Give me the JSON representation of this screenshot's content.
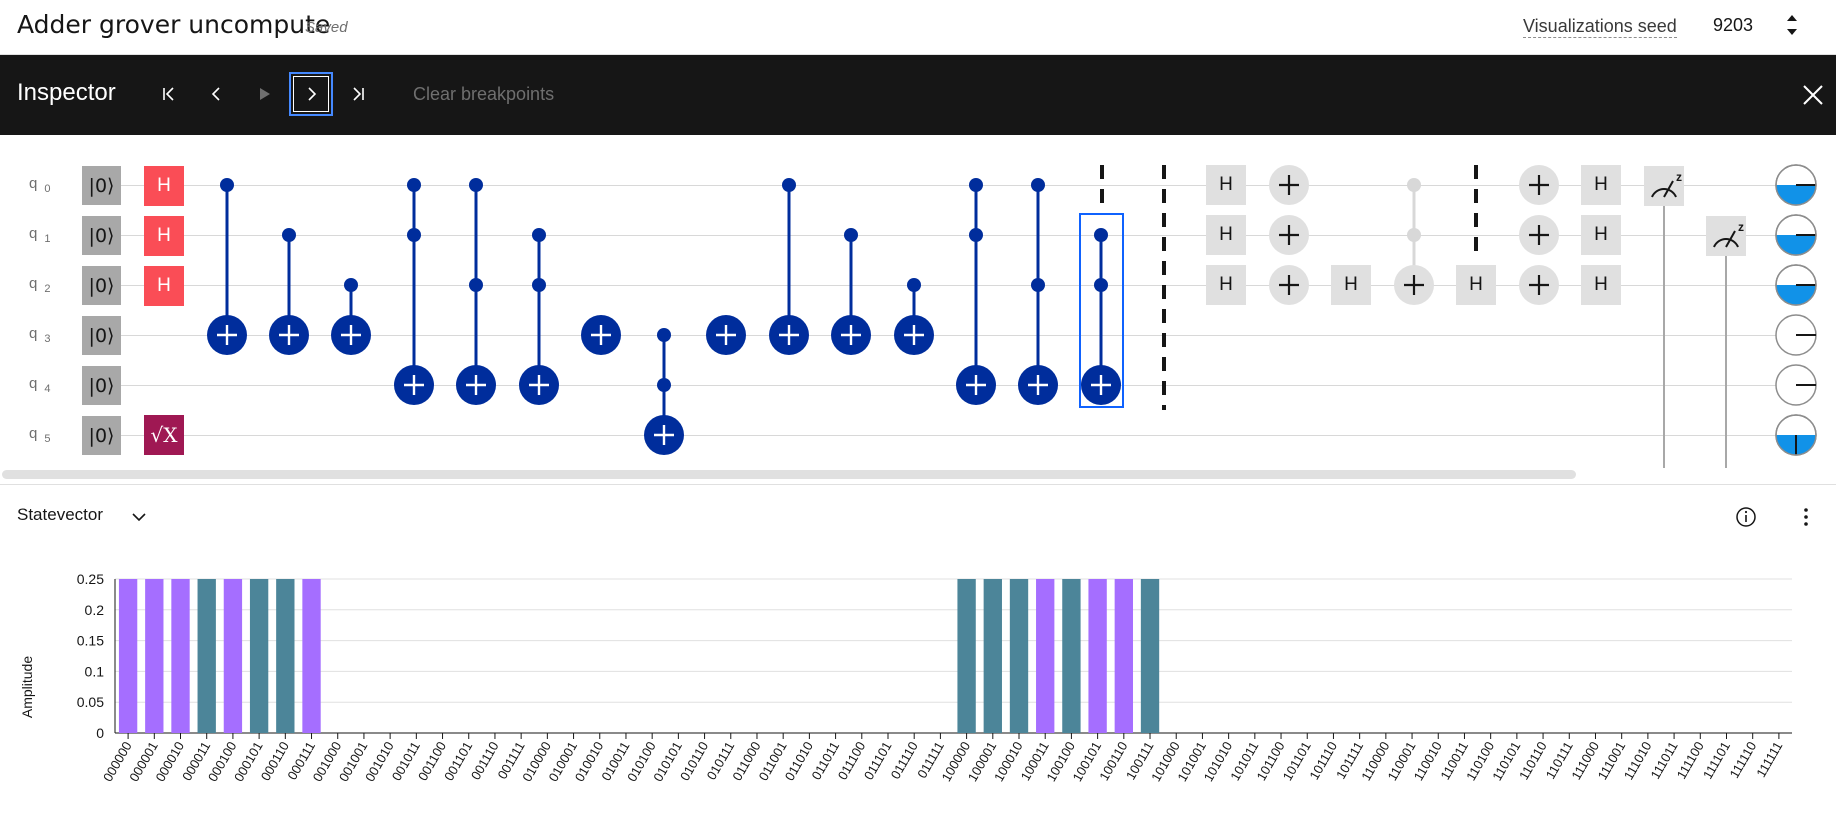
{
  "header": {
    "title": "Adder grover uncompute",
    "saved": "Saved",
    "seed_label": "Visualizations seed",
    "seed_value": "9203"
  },
  "inspector": {
    "title": "Inspector",
    "clear_breakpoints": "Clear breakpoints"
  },
  "circuit": {
    "qubits": [
      {
        "name": "q",
        "index": "0"
      },
      {
        "name": "q",
        "index": "1"
      },
      {
        "name": "q",
        "index": "2"
      },
      {
        "name": "q",
        "index": "3"
      },
      {
        "name": "q",
        "index": "4"
      },
      {
        "name": "q",
        "index": "5"
      }
    ],
    "init_label": "|0⟩",
    "h_label": "H",
    "sx_label": "√X"
  },
  "statevector": {
    "title": "Statevector"
  },
  "chart_data": {
    "type": "bar",
    "ylabel": "Amplitude",
    "xlabel": "",
    "ylim": [
      0,
      0.25
    ],
    "yticks": [
      "0",
      "0.05",
      "0.1",
      "0.15",
      "0.2",
      "0.25"
    ],
    "categories": [
      "000000",
      "000001",
      "000010",
      "000011",
      "000100",
      "000101",
      "000110",
      "000111",
      "001000",
      "001001",
      "001010",
      "001011",
      "001100",
      "001101",
      "001110",
      "001111",
      "010000",
      "010001",
      "010010",
      "010011",
      "010100",
      "010101",
      "010110",
      "010111",
      "011000",
      "011001",
      "011010",
      "011011",
      "011100",
      "011101",
      "011110",
      "011111",
      "100000",
      "100001",
      "100010",
      "100011",
      "100100",
      "100101",
      "100110",
      "100111",
      "101000",
      "101001",
      "101010",
      "101011",
      "101100",
      "101101",
      "101110",
      "101111",
      "110000",
      "110001",
      "110010",
      "110011",
      "110100",
      "110101",
      "110110",
      "110111",
      "111000",
      "111001",
      "111010",
      "111011",
      "111100",
      "111101",
      "111110",
      "111111"
    ],
    "values": [
      0.25,
      0.25,
      0.25,
      0.25,
      0.25,
      0.25,
      0.25,
      0.25,
      0,
      0,
      0,
      0,
      0,
      0,
      0,
      0,
      0,
      0,
      0,
      0,
      0,
      0,
      0,
      0,
      0,
      0,
      0,
      0,
      0,
      0,
      0,
      0,
      0.25,
      0.25,
      0.25,
      0.25,
      0.25,
      0.25,
      0.25,
      0.25,
      0,
      0,
      0,
      0,
      0,
      0,
      0,
      0,
      0,
      0,
      0,
      0,
      0,
      0,
      0,
      0,
      0,
      0,
      0,
      0,
      0,
      0,
      0,
      0
    ],
    "bar_colors": [
      "#a56eff",
      "#a56eff",
      "#a56eff",
      "#4c8599",
      "#a56eff",
      "#4c8599",
      "#4c8599",
      "#a56eff",
      "",
      "",
      "",
      "",
      "",
      "",
      "",
      "",
      "",
      "",
      "",
      "",
      "",
      "",
      "",
      "",
      "",
      "",
      "",
      "",
      "",
      "",
      "",
      "",
      "#4c8599",
      "#4c8599",
      "#4c8599",
      "#a56eff",
      "#4c8599",
      "#a56eff",
      "#a56eff",
      "#4c8599",
      "",
      "",
      "",
      "",
      "",
      "",
      "",
      "",
      "",
      "",
      "",
      "",
      "",
      "",
      "",
      "",
      "",
      "",
      "",
      "",
      "",
      "",
      "",
      ""
    ]
  },
  "colors": {
    "accent": "#002d9c",
    "purple_bar": "#a56eff",
    "teal_bar": "#4c8599",
    "h_gate": "#fa4d56",
    "sx_gate": "#9f1853",
    "highlight": "#0f62fe"
  }
}
